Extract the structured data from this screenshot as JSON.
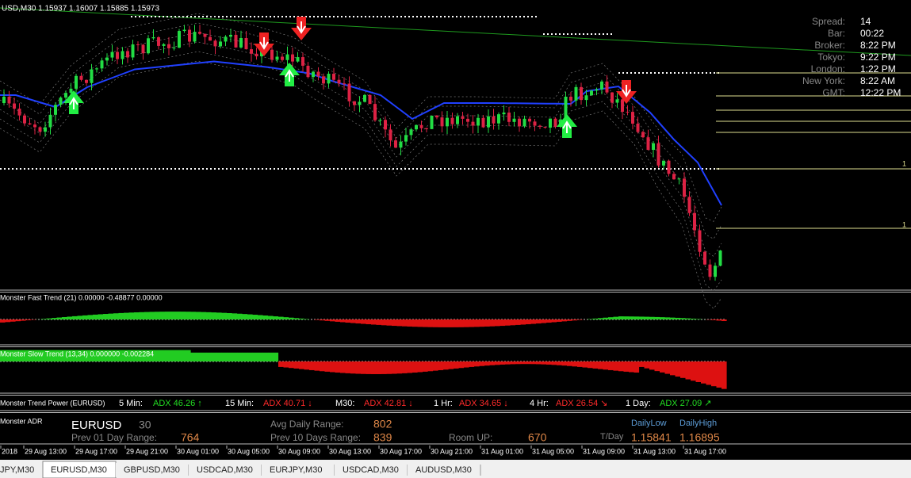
{
  "header": {
    "symbol_info": "USD,M30  1.15937 1.16007 1.15885 1.15973"
  },
  "info_panel": [
    {
      "label": "Spread:",
      "value": "14"
    },
    {
      "label": "Bar:",
      "value": "00:22"
    },
    {
      "label": "Broker:",
      "value": "8:22 PM"
    },
    {
      "label": "Tokyo:",
      "value": "9:22 PM"
    },
    {
      "label": "London:",
      "value": "1:22 PM"
    },
    {
      "label": "New York:",
      "value": "8:22 AM"
    },
    {
      "label": "GMT:",
      "value": "12:22 PM"
    }
  ],
  "price_labels": [
    "1",
    "1"
  ],
  "indicators": {
    "fast_trend": "Monster Fast Trend (21) 0.00000 -0.48877 0.00000",
    "slow_trend": "Monster Slow Trend (13,34) 0.000000 -0.002284"
  },
  "trend_power": {
    "title": "Monster Trend Power (EURUSD)",
    "items": [
      {
        "label": "5 Min:",
        "adx": "ADX 46.26 ↑",
        "color": "#22dd22"
      },
      {
        "label": "15 Min:",
        "adx": "ADX 40.71 ↓",
        "color": "#ff2a2a"
      },
      {
        "label": "M30:",
        "adx": "ADX 42.81 ↓",
        "color": "#ff2a2a"
      },
      {
        "label": "1 Hr:",
        "adx": "ADX 34.65 ↓",
        "color": "#ff2a2a"
      },
      {
        "label": "4 Hr:",
        "adx": "ADX 26.54 ↘",
        "color": "#ff2a2a"
      },
      {
        "label": "1 Day:",
        "adx": "ADX 27.09 ↗",
        "color": "#22dd22"
      }
    ]
  },
  "adr": {
    "title": "Monster ADR",
    "symbol": "EURUSD",
    "period": "30",
    "avg_label": "Avg Daily Range:",
    "avg_value": "802",
    "prev1_label": "Prev 01 Day Range:",
    "prev1_value": "764",
    "prev10_label": "Prev 10 Days Range:",
    "prev10_value": "839",
    "room_label": "Room UP:",
    "room_value": "670",
    "low_label": "DailyLow",
    "high_label": "DailyHigh",
    "tday_label": "T/Day",
    "low_value": "1.15841",
    "high_value": "1.16895"
  },
  "time_axis": [
    "2018",
    "29 Aug 13:00",
    "29 Aug 17:00",
    "29 Aug 21:00",
    "30 Aug 01:00",
    "30 Aug 05:00",
    "30 Aug 09:00",
    "30 Aug 13:00",
    "30 Aug 17:00",
    "30 Aug 21:00",
    "31 Aug 01:00",
    "31 Aug 05:00",
    "31 Aug 09:00",
    "31 Aug 13:00",
    "31 Aug 17:00"
  ],
  "tabs": [
    {
      "label": "JPY,M30",
      "active": false
    },
    {
      "label": "EURUSD,M30",
      "active": true
    },
    {
      "label": "GBPUSD,M30",
      "active": false
    },
    {
      "label": "USDCAD,M30",
      "active": false
    },
    {
      "label": "EURJPY,M30",
      "active": false
    },
    {
      "label": "USDCAD,M30",
      "active": false
    },
    {
      "label": "AUDUSD,M30",
      "active": false
    }
  ]
}
